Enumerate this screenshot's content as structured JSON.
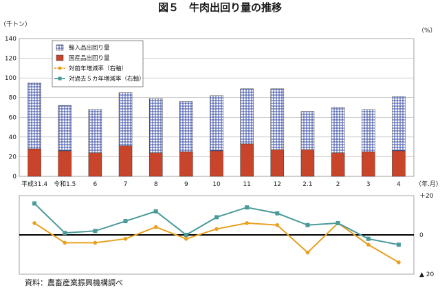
{
  "page": {
    "title": "図５　牛肉出回り量の推移",
    "source": "資料：農畜産業振興機構調べ"
  },
  "chart_data": [
    {
      "type": "bar",
      "stacked": true,
      "y_unit": "（千トン）",
      "x_unit": "（年.月）",
      "ylim": [
        0,
        140
      ],
      "yticks": [
        0,
        20,
        40,
        60,
        80,
        100,
        120,
        140
      ],
      "grid": true,
      "legend_position": "top-left",
      "categories": [
        "平成31.4",
        "令和1.5",
        "6",
        "7",
        "8",
        "9",
        "10",
        "11",
        "12",
        "2.1",
        "2",
        "3",
        "4"
      ],
      "series": [
        {
          "name": "国産品出回り量",
          "color": "#c8442a",
          "values": [
            28,
            26,
            24,
            31,
            24,
            25,
            26,
            33,
            27,
            27,
            24,
            25,
            26
          ]
        },
        {
          "name": "輸入品出回り量",
          "color": "#3b4fa8",
          "values": [
            67,
            46,
            44,
            54,
            55,
            51,
            56,
            56,
            62,
            39,
            46,
            43,
            55
          ]
        }
      ]
    },
    {
      "type": "line",
      "y_unit": "（%）",
      "ylim": [
        -20,
        20
      ],
      "ytick_labels": [
        "＋20",
        "0",
        "▲ 20"
      ],
      "yticks": [
        20,
        0,
        -20
      ],
      "categories": [
        "平成31.4",
        "令和1.5",
        "6",
        "7",
        "8",
        "9",
        "10",
        "11",
        "12",
        "2.1",
        "2",
        "3",
        "4"
      ],
      "series": [
        {
          "name": "対前年増減率（右軸）",
          "color": "#e8a020",
          "marker": "circle",
          "values": [
            6,
            -4,
            -4,
            -2,
            4,
            -2,
            3,
            6,
            5,
            -9,
            6,
            -5,
            -14
          ]
        },
        {
          "name": "対過去５カ年増減率（右軸）",
          "color": "#4a9a9a",
          "marker": "square",
          "values": [
            16,
            1,
            2,
            7,
            12,
            0,
            9,
            14,
            11,
            5,
            6,
            -2,
            -5
          ]
        }
      ]
    }
  ]
}
